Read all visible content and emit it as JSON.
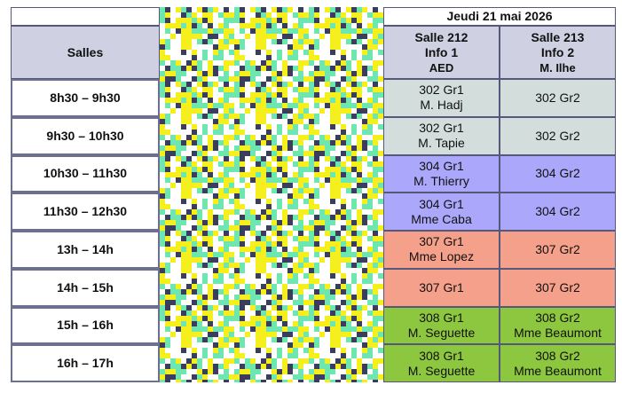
{
  "header": {
    "date": "Jeudi 21 mai 2026",
    "rooms_label": "Salles",
    "rooms": [
      [
        "Salle 212",
        "Info 1",
        "AED"
      ],
      [
        "Salle 213",
        "Info 2",
        "M. Ilhe"
      ]
    ]
  },
  "rows": [
    {
      "time": "8h30 – 9h30",
      "color": "#d3dedc",
      "cells": [
        [
          "302 Gr1",
          "M. Hadj"
        ],
        [
          "302 Gr2"
        ]
      ]
    },
    {
      "time": "9h30 – 10h30",
      "color": "#d3dedc",
      "cells": [
        [
          "302 Gr1",
          "M. Tapie"
        ],
        [
          "302 Gr2"
        ]
      ]
    },
    {
      "time": "10h30 – 11h30",
      "color": "#aba7fb",
      "cells": [
        [
          "304 Gr1",
          "M. Thierry"
        ],
        [
          "304 Gr2"
        ]
      ]
    },
    {
      "time": "11h30 – 12h30",
      "color": "#aba7fb",
      "cells": [
        [
          "304 Gr1",
          "Mme Caba"
        ],
        [
          "304 Gr2"
        ]
      ]
    },
    {
      "time": "13h – 14h",
      "color": "#f4a08a",
      "cells": [
        [
          "307 Gr1",
          "Mme Lopez"
        ],
        [
          "307 Gr2"
        ]
      ]
    },
    {
      "time": "14h – 15h",
      "color": "#f4a08a",
      "cells": [
        [
          "307 Gr1"
        ],
        [
          "307 Gr2"
        ]
      ]
    },
    {
      "time": "15h – 16h",
      "color": "#8dc63f",
      "cells": [
        [
          "308 Gr1",
          "M. Seguette"
        ],
        [
          "308 Gr2",
          "Mme Beaumont"
        ]
      ]
    },
    {
      "time": "16h – 17h",
      "color": "#8dc63f",
      "cells": [
        [
          "308 Gr1",
          "M. Seguette"
        ],
        [
          "308 Gr2",
          "Mme Beaumont"
        ]
      ]
    }
  ]
}
